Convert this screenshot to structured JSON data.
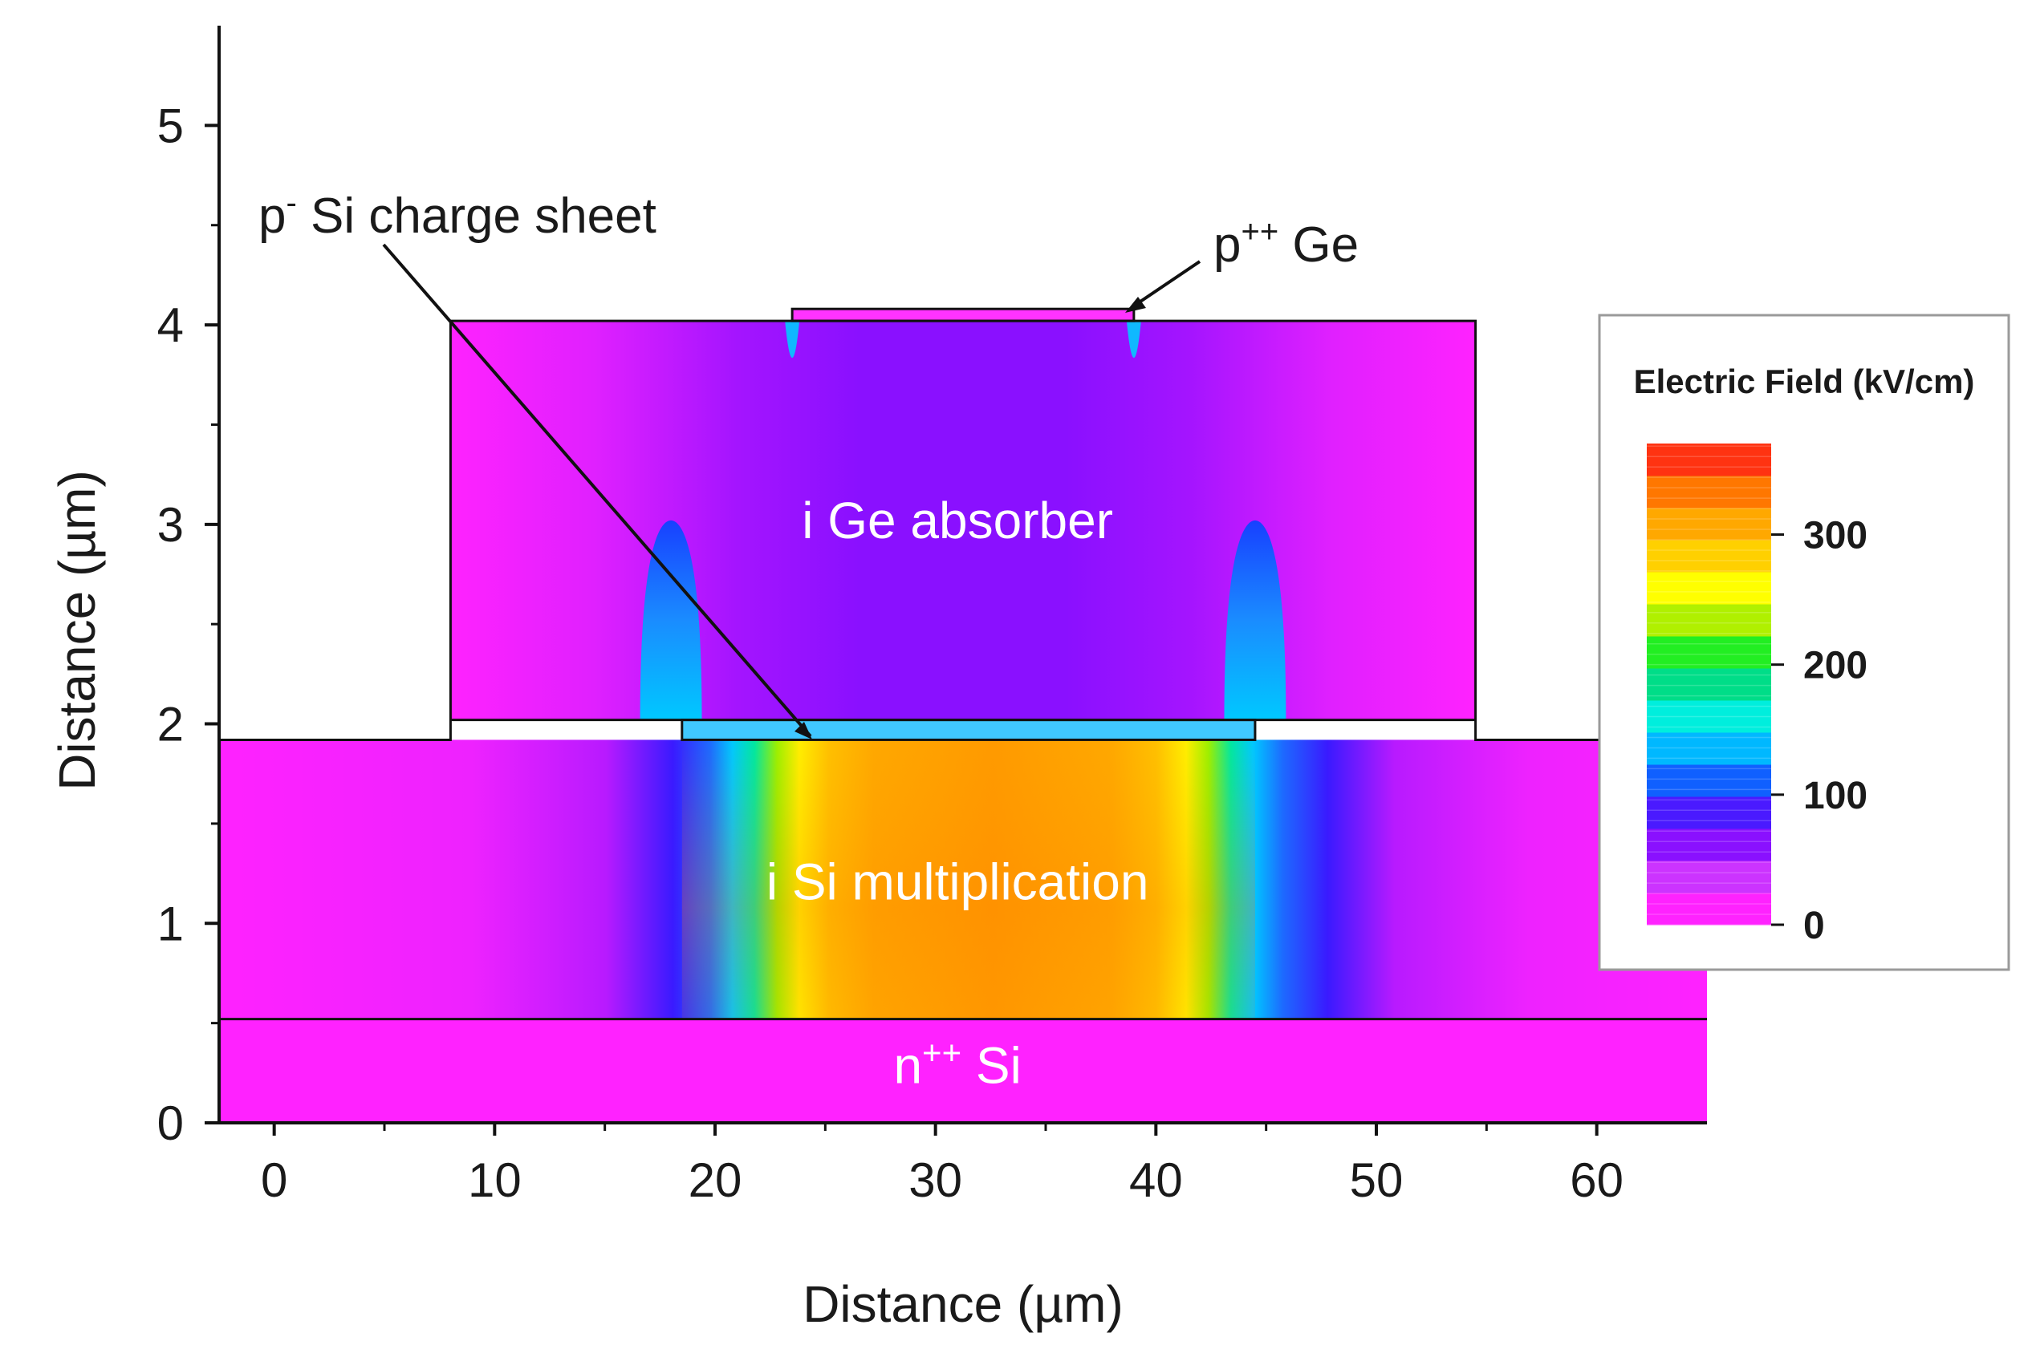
{
  "chart_data": {
    "type": "heatmap",
    "title": "",
    "xlabel": "Distance (µm)",
    "ylabel": "Distance (µm)",
    "xlim": [
      -2.5,
      65
    ],
    "ylim": [
      0,
      5.5
    ],
    "x_ticks": [
      0,
      10,
      20,
      30,
      40,
      50,
      60
    ],
    "x_tick_labels": [
      "0",
      "10",
      "20",
      "30",
      "40",
      "50",
      "60"
    ],
    "y_ticks": [
      0,
      1,
      2,
      3,
      4,
      5
    ],
    "y_tick_labels": [
      "0",
      "1",
      "2",
      "3",
      "4",
      "5"
    ],
    "regions": [
      {
        "name": "n++ Si",
        "label": "n",
        "label_sup": "++",
        "label_tail": " Si",
        "x": [
          -2.5,
          65
        ],
        "y": [
          0,
          0.52
        ],
        "field_kV_cm": 0
      },
      {
        "name": "i Si multiplication",
        "label": "i Si multiplication",
        "x": [
          -2.5,
          65
        ],
        "y": [
          0.52,
          1.92
        ],
        "field_kV_cm": 310
      },
      {
        "name": "p- Si charge sheet",
        "x": [
          18.5,
          44.5
        ],
        "y": [
          1.92,
          2.02
        ],
        "field_kV_cm": 150
      },
      {
        "name": "i Ge absorber",
        "label": "i Ge absorber",
        "x": [
          8,
          54.5
        ],
        "y": [
          2.02,
          4.02
        ],
        "field_kV_cm": 40
      },
      {
        "name": "p++ Ge",
        "x": [
          23.5,
          39
        ],
        "y": [
          4.02,
          4.08
        ],
        "field_kV_cm": 0
      }
    ],
    "annotations": [
      {
        "text": "p",
        "sup": "-",
        "tail": " Si charge sheet",
        "target": "p- Si charge sheet"
      },
      {
        "text": "p",
        "sup": "++",
        "tail": " Ge",
        "target": "p++ Ge"
      }
    ],
    "colorbar": {
      "title": "Electric Field (kV/cm)",
      "range": [
        0,
        370
      ],
      "ticks": [
        0,
        100,
        200,
        300
      ],
      "tick_labels": [
        "0",
        "100",
        "200",
        "300"
      ],
      "colors": [
        "#ff22ff",
        "#cc33ff",
        "#8a10ff",
        "#4a1aff",
        "#1060ff",
        "#00b8ff",
        "#00eedd",
        "#00dd88",
        "#22ee22",
        "#b0f000",
        "#ffff00",
        "#ffd000",
        "#ffa800",
        "#ff7700",
        "#ff3311"
      ]
    }
  }
}
